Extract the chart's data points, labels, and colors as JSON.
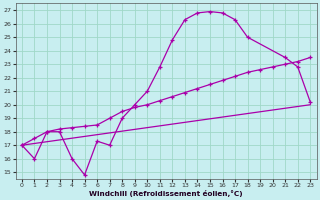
{
  "xlabel": "Windchill (Refroidissement éolien,°C)",
  "bg_color": "#c8eef0",
  "grid_color": "#a0d8c8",
  "line_color": "#aa00aa",
  "xlim": [
    -0.5,
    23.5
  ],
  "ylim": [
    14.5,
    27.5
  ],
  "xticks": [
    0,
    1,
    2,
    3,
    4,
    5,
    6,
    7,
    8,
    9,
    10,
    11,
    12,
    13,
    14,
    15,
    16,
    17,
    18,
    19,
    20,
    21,
    22,
    23
  ],
  "yticks": [
    15,
    16,
    17,
    18,
    19,
    20,
    21,
    22,
    23,
    24,
    25,
    26,
    27
  ],
  "line1_x": [
    0,
    1,
    2,
    3,
    4,
    5,
    6,
    7,
    8,
    9,
    10,
    11,
    12,
    13,
    14,
    15,
    16,
    17,
    18,
    21,
    22,
    23
  ],
  "line1_y": [
    17,
    16,
    18,
    18,
    16,
    14.8,
    17.3,
    17.0,
    19.0,
    20.0,
    21.0,
    22.8,
    24.8,
    26.3,
    26.8,
    26.9,
    26.8,
    26.3,
    25.0,
    23.5,
    22.8,
    20.2
  ],
  "line2_x": [
    0,
    1,
    2,
    3,
    4,
    5,
    6,
    7,
    8,
    9,
    10,
    11,
    12,
    13,
    14,
    15,
    16,
    17,
    18,
    19,
    20,
    21,
    22,
    23
  ],
  "line2_y": [
    17.0,
    17.5,
    18.0,
    18.2,
    18.3,
    18.4,
    18.5,
    19.0,
    19.5,
    19.8,
    20.0,
    20.3,
    20.6,
    20.9,
    21.2,
    21.5,
    21.8,
    22.1,
    22.4,
    22.6,
    22.8,
    23.0,
    23.2,
    23.5
  ],
  "line3_x": [
    0,
    23
  ],
  "line3_y": [
    17.0,
    20.0
  ]
}
